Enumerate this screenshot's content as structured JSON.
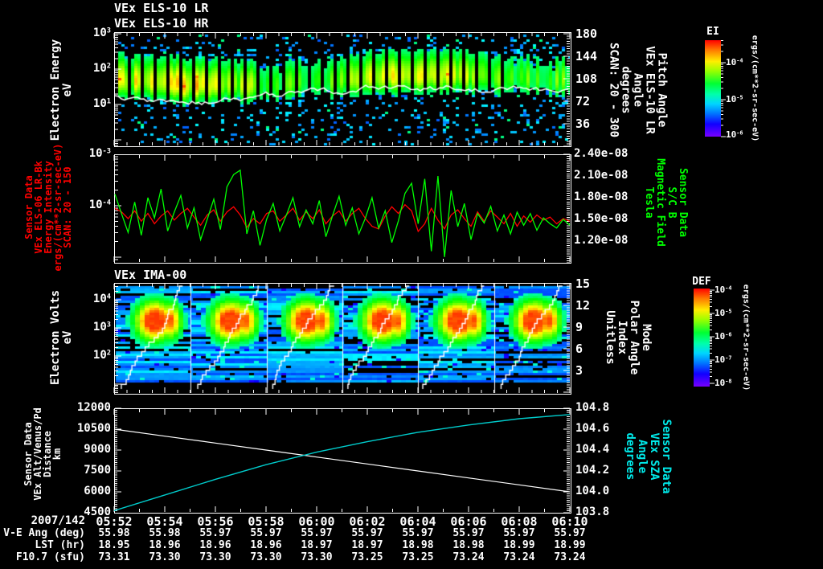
{
  "meta": {
    "date_label": "2007/142"
  },
  "colors": {
    "background": "#000000",
    "axis": "#ffffff",
    "red_series": "#ff0000",
    "green_series": "#00ff00",
    "cyan_series": "#00cccc",
    "white_series": "#ffffff"
  },
  "panel1": {
    "title_lines": [
      "VEx ELS-10 LR",
      "VEx ELS-10 HR"
    ],
    "ylabel_lines": [
      "Electron Energy",
      "eV"
    ],
    "yticks": [
      "10^3",
      "10^2",
      "10^1"
    ],
    "right_ticks": [
      "180",
      "144",
      "108",
      "72",
      "36"
    ],
    "right_label_lines": [
      "Pitch Angle",
      "VEx ELS-10 LR",
      "Angle",
      "degrees",
      "SCAN: 20 - 300"
    ],
    "colorbar": {
      "title": "EI",
      "ticks": [
        "10^-4",
        "10^-5",
        "10^-6"
      ],
      "units": "ergs/(cm**2-sr-sec-eV)"
    }
  },
  "panel2": {
    "left_label_lines": [
      "Sensor Data",
      "VEx ELS-06 LR-Bk",
      "Energy Intensity",
      "ergs/(cm**2-sr-sec-eV)",
      "SCAN: 20 - 150"
    ],
    "yticks": [
      "10^-3",
      "10^-4"
    ],
    "right_ticks": [
      "2.40e-08",
      "2.10e-08",
      "1.80e-08",
      "1.50e-08",
      "1.20e-08"
    ],
    "right_label_lines": [
      "Sensor Data",
      "S/C B",
      "Magnetic Field",
      "Tesla"
    ]
  },
  "panel3": {
    "title": "VEx IMA-00",
    "ylabel_lines": [
      "Electron Volts",
      "eV"
    ],
    "yticks": [
      "10^4",
      "10^3",
      "10^2"
    ],
    "right_ticks": [
      "15",
      "12",
      "9",
      "6",
      "3"
    ],
    "right_label_lines": [
      "Mode",
      "Polar Angle",
      "Index",
      "Unitless"
    ],
    "colorbar": {
      "title": "DEF",
      "ticks": [
        "10^-4",
        "10^-5",
        "10^-6",
        "10^-7",
        "10^-8"
      ],
      "units": "ergs/(cm**2-sr-sec-eV)"
    }
  },
  "panel4": {
    "left_label_lines": [
      "Sensor Data",
      "VEx Alt/Venus/Pd",
      "Distance",
      "km"
    ],
    "yticks": [
      "12000",
      "10500",
      "9000",
      "7500",
      "6000",
      "4500"
    ],
    "right_ticks": [
      "104.8",
      "104.6",
      "104.4",
      "104.2",
      "104.0",
      "103.8"
    ],
    "right_label_lines": [
      "Sensor Data",
      "VEx SZA",
      "Angle",
      "degrees"
    ]
  },
  "xaxis": {
    "times": [
      "05:52",
      "05:54",
      "05:56",
      "05:58",
      "06:00",
      "06:02",
      "06:04",
      "06:06",
      "06:08",
      "06:10"
    ]
  },
  "table": {
    "rows": [
      {
        "label": "V-E Ang (deg)",
        "values": [
          "55.98",
          "55.98",
          "55.97",
          "55.97",
          "55.97",
          "55.97",
          "55.97",
          "55.97",
          "55.97",
          "55.97"
        ]
      },
      {
        "label": "LST (hr)",
        "values": [
          "18.95",
          "18.96",
          "18.96",
          "18.96",
          "18.97",
          "18.97",
          "18.98",
          "18.98",
          "18.99",
          "18.99"
        ]
      },
      {
        "label": "F10.7 (sfu)",
        "values": [
          "73.31",
          "73.30",
          "73.30",
          "73.30",
          "73.30",
          "73.25",
          "73.25",
          "73.24",
          "73.24",
          "73.24"
        ]
      }
    ]
  },
  "chart_data": [
    {
      "type": "heatmap",
      "title": "VEx ELS-10 LR / VEx ELS-10 HR",
      "xlabel": "UT 2007/142 05:52 - 06:10",
      "ylabel": "Electron Energy eV",
      "y_range_log": [
        1,
        1000
      ],
      "y2label": "Pitch Angle VEx ELS-10 LR Angle degrees SCAN: 20 - 300",
      "y2_range": [
        0,
        180
      ],
      "colorbar": {
        "title": "EI",
        "units": "ergs/(cm**2-sr-sec-eV)",
        "tick_values": [
          "1e-4",
          "1e-5",
          "1e-6"
        ]
      },
      "description": "Electron energy-time spectrogram: intense green-yellow band 20-100 eV with periodic black burst gaps, scattered blue/cyan low flux points above and below, white mean-energy trace near 20 eV"
    },
    {
      "type": "line",
      "x_times": [
        "05:52",
        "05:54",
        "05:56",
        "05:58",
        "06:00",
        "06:02",
        "06:04",
        "06:06",
        "06:08",
        "06:10"
      ],
      "ylim_left_log": [
        "1e-5",
        "1e-3"
      ],
      "ylim_right_tesla": [
        "0.9e-8",
        "2.4e-8"
      ],
      "series": [
        {
          "name": "VEx ELS-06 LR-Bk Energy Intensity SCAN: 20 - 150 (left axis, ergs/(cm**2-sr-sec-eV))",
          "color": "#ff0000",
          "log10_values": [
            -4.05,
            -4.12,
            -4.25,
            -4.1,
            -4.3,
            -4.15,
            -4.35,
            -4.2,
            -4.1,
            -4.28,
            -4.15,
            -4.05,
            -4.22,
            -4.38,
            -4.18,
            -4.08,
            -4.3,
            -4.12,
            -4.02,
            -4.18,
            -4.42,
            -4.25,
            -4.35,
            -4.15,
            -4.1,
            -4.3,
            -4.18,
            -4.05,
            -4.28,
            -4.12,
            -4.25,
            -4.08,
            -4.35,
            -4.2,
            -4.1,
            -4.3,
            -4.15,
            -4.05,
            -4.25,
            -4.4,
            -4.45,
            -4.2,
            -4.02,
            -4.15,
            -3.98,
            -4.1,
            -4.5,
            -4.35,
            -4.05,
            -4.28,
            -4.45,
            -4.18,
            -4.08,
            -4.25,
            -4.4,
            -4.12,
            -4.3,
            -4.1,
            -4.22,
            -4.35,
            -4.15,
            -4.4,
            -4.2,
            -4.32,
            -4.18,
            -4.28,
            -4.22,
            -4.35,
            -4.25,
            -4.3
          ]
        },
        {
          "name": "Sensor Data S/C B Magnetic Field Tesla (right axis)",
          "color": "#00ff00",
          "values_1e-8": [
            1.85,
            1.58,
            1.32,
            1.74,
            1.28,
            1.8,
            1.52,
            1.92,
            1.34,
            1.6,
            1.83,
            1.38,
            1.66,
            1.22,
            1.5,
            1.78,
            1.36,
            1.95,
            2.12,
            2.18,
            1.3,
            1.62,
            1.14,
            1.5,
            1.72,
            1.34,
            1.56,
            1.8,
            1.4,
            1.63,
            1.44,
            1.76,
            1.26,
            1.55,
            1.82,
            1.42,
            1.66,
            1.3,
            1.52,
            1.8,
            1.38,
            1.62,
            1.18,
            1.48,
            1.86,
            2.0,
            1.44,
            2.06,
            1.06,
            2.1,
            0.98,
            1.9,
            1.4,
            1.72,
            1.22,
            1.58,
            1.45,
            1.68,
            1.34,
            1.56,
            1.3,
            1.6,
            1.42,
            1.58,
            1.35,
            1.52,
            1.44,
            1.38,
            1.5,
            1.42
          ]
        }
      ]
    },
    {
      "type": "heatmap",
      "title": "VEx IMA-00",
      "ylabel": "Electron Volts eV",
      "y_range_log": [
        5,
        30000
      ],
      "y2label": "Mode Polar Angle Index Unitless",
      "y2_range": [
        0,
        15
      ],
      "colorbar": {
        "title": "DEF",
        "units": "ergs/(cm**2-sr-sec-eV)",
        "tick_values": [
          "1e-4",
          "1e-5",
          "1e-6",
          "1e-7",
          "1e-8"
        ]
      },
      "description": "Ion spectrogram: six ~3-minute scans, each a blue striped background with a red/yellow ion beam core near 1-2 keV and a white stepped polar-angle ramp rising left-to-right; white vertical lines separate scans"
    },
    {
      "type": "line",
      "x_times": [
        "05:52",
        "05:54",
        "05:56",
        "05:58",
        "06:00",
        "06:02",
        "06:04",
        "06:06",
        "06:08",
        "06:10"
      ],
      "ylim_left_km": [
        4500,
        12000
      ],
      "ylim_right_deg": [
        103.8,
        104.8
      ],
      "series": [
        {
          "name": "Sensor Data VEx Alt/Venus/Pd Distance km (left axis)",
          "color": "#ffffff",
          "values": [
            10500,
            10000,
            9500,
            9000,
            8500,
            8000,
            7500,
            7000,
            6500,
            6000
          ]
        },
        {
          "name": "Sensor Data VEx SZA Angle degrees (right axis)",
          "color": "#00cccc",
          "values": [
            103.82,
            103.97,
            104.12,
            104.26,
            104.38,
            104.48,
            104.57,
            104.64,
            104.7,
            104.74
          ]
        }
      ]
    }
  ]
}
